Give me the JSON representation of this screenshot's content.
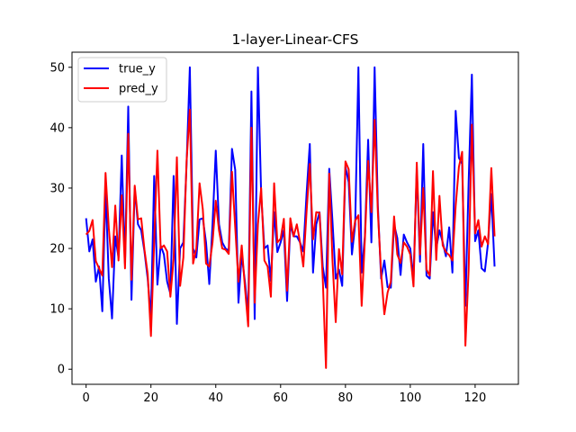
{
  "chart_data": {
    "type": "line",
    "title": "1-layer-Linear-CFS",
    "xlabel": "",
    "ylabel": "",
    "xlim": [
      -4.35,
      133.35
    ],
    "ylim": [
      -2.5,
      52.5
    ],
    "xticks": [
      0,
      20,
      40,
      60,
      80,
      100,
      120
    ],
    "yticks": [
      0,
      10,
      20,
      30,
      40,
      50
    ],
    "grid": false,
    "legend": "top-left",
    "series": [
      {
        "name": "true_y",
        "color": "#0000ff",
        "values": [
          25.0,
          19.5,
          21.5,
          14.5,
          17.0,
          9.6,
          30.0,
          15.0,
          8.4,
          22.0,
          18.5,
          35.4,
          17.5,
          43.5,
          11.5,
          30.0,
          24.0,
          23.0,
          19.5,
          15.0,
          8.5,
          32.0,
          14.0,
          20.5,
          19.0,
          14.5,
          12.5,
          32.0,
          7.5,
          20.0,
          21.0,
          34.0,
          50.0,
          20.0,
          18.5,
          24.8,
          25.0,
          21.0,
          14.1,
          24.0,
          36.2,
          24.0,
          21.0,
          20.0,
          19.6,
          36.5,
          33.0,
          11.0,
          19.0,
          14.5,
          9.0,
          46.0,
          8.3,
          50.0,
          29.0,
          20.0,
          20.5,
          14.6,
          26.0,
          19.4,
          21.0,
          23.0,
          11.3,
          24.0,
          22.0,
          22.0,
          21.0,
          19.5,
          29.0,
          37.3,
          16.0,
          24.0,
          26.0,
          17.0,
          13.5,
          33.2,
          24.5,
          15.0,
          16.5,
          13.8,
          33.5,
          31.0,
          19.0,
          24.0,
          50.0,
          16.0,
          22.0,
          38.0,
          21.0,
          50.0,
          27.0,
          15.0,
          18.0,
          13.6,
          13.5,
          24.0,
          21.7,
          15.6,
          22.3,
          21.0,
          20.0,
          15.0,
          33.0,
          17.8,
          37.3,
          15.5,
          15.0,
          26.0,
          20.0,
          23.0,
          21.0,
          18.7,
          23.5,
          16.0,
          42.8,
          35.0,
          34.0,
          10.5,
          31.0,
          48.8,
          21.2,
          23.0,
          16.7,
          16.2,
          21.0,
          29.0,
          17.0
        ]
      },
      {
        "name": "pred_y",
        "color": "#ff0000",
        "values": [
          22.3,
          22.9,
          24.7,
          17.9,
          16.7,
          15.5,
          32.5,
          23.4,
          16.9,
          27.1,
          18.0,
          28.8,
          16.7,
          39.0,
          14.8,
          30.4,
          24.8,
          25.0,
          19.8,
          15.8,
          5.5,
          21.0,
          36.2,
          20.0,
          20.5,
          19.5,
          12.0,
          18.3,
          35.1,
          13.8,
          18.5,
          34.5,
          43.0,
          17.5,
          20.0,
          30.8,
          26.5,
          17.5,
          17.0,
          21.0,
          27.9,
          23.0,
          20.0,
          19.8,
          19.1,
          32.7,
          23.5,
          14.5,
          20.5,
          13.5,
          7.1,
          40.0,
          11.0,
          24.0,
          30.0,
          18.0,
          17.0,
          12.0,
          30.8,
          21.0,
          21.6,
          24.9,
          13.0,
          25.0,
          22.0,
          24.0,
          21.0,
          17.0,
          26.0,
          34.0,
          21.5,
          26.0,
          25.9,
          15.0,
          0.2,
          32.4,
          18.0,
          7.8,
          19.9,
          15.7,
          34.4,
          33.1,
          21.1,
          24.6,
          25.5,
          10.5,
          21.5,
          34.5,
          26.0,
          41.3,
          26.0,
          16.0,
          9.1,
          12.7,
          14.5,
          25.3,
          19.0,
          17.6,
          21.0,
          20.3,
          19.0,
          13.7,
          34.2,
          19.0,
          30.0,
          16.5,
          15.5,
          32.8,
          18.1,
          28.7,
          20.5,
          19.4,
          18.9,
          18.0,
          27.0,
          33.5,
          36.0,
          3.9,
          16.5,
          40.5,
          22.5,
          24.7,
          20.3,
          22.0,
          20.7,
          33.3,
          22.0
        ]
      }
    ]
  }
}
